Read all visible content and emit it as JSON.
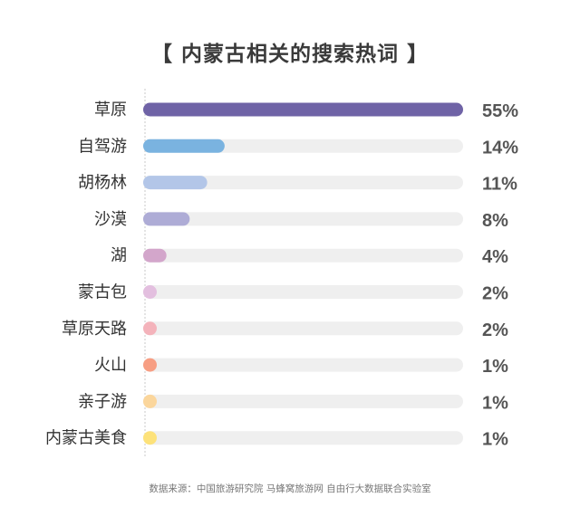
{
  "chart_data": {
    "type": "bar",
    "orientation": "horizontal",
    "title": "【 内蒙古相关的搜索热词 】",
    "categories": [
      "草原",
      "自驾游",
      "胡杨林",
      "沙漠",
      "湖",
      "蒙古包",
      "草原天路",
      "火山",
      "亲子游",
      "内蒙古美食"
    ],
    "values": [
      55,
      14,
      11,
      8,
      4,
      2,
      2,
      1,
      1,
      1
    ],
    "value_labels": [
      "55%",
      "14%",
      "11%",
      "8%",
      "4%",
      "2%",
      "2%",
      "1%",
      "1%",
      "1%"
    ],
    "colors": [
      "#6f63a6",
      "#7ab3e0",
      "#b3c6e8",
      "#aeacd6",
      "#d3a6cb",
      "#e3bfdf",
      "#f4b3bb",
      "#f79e83",
      "#fbd69c",
      "#fde27a"
    ],
    "track_color": "#efefef",
    "xlim": [
      0,
      55
    ],
    "xlabel": "",
    "ylabel": "",
    "grid": false,
    "legend": "none"
  },
  "source": "数据来源：中国旅游研究院 马蜂窝旅游网 自由行大数据联合实验室"
}
